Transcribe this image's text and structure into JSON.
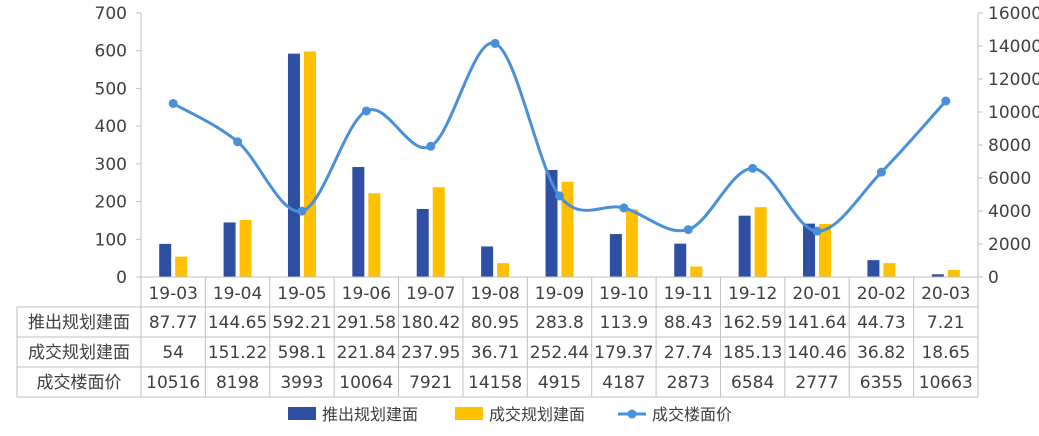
{
  "chart_data": {
    "type": "bar",
    "categories": [
      "19-03",
      "19-04",
      "19-05",
      "19-06",
      "19-07",
      "19-08",
      "19-09",
      "19-10",
      "19-11",
      "19-12",
      "20-01",
      "20-02",
      "20-03"
    ],
    "series": [
      {
        "name": "推出规划建面",
        "type": "bar",
        "axis": "left",
        "color": "#2F4FA3",
        "values": [
          87.77,
          144.65,
          592.21,
          291.58,
          180.42,
          80.95,
          283.8,
          113.9,
          88.43,
          162.59,
          141.64,
          44.73,
          7.21
        ],
        "labels": [
          "87.77",
          "144.65",
          "592.21",
          "291.58",
          "180.42",
          "80.95",
          "283.8",
          "113.9",
          "88.43",
          "162.59",
          "141.64",
          "44.73",
          "7.21"
        ]
      },
      {
        "name": "成交规划建面",
        "type": "bar",
        "axis": "left",
        "color": "#FFC000",
        "values": [
          54,
          151.22,
          598.1,
          221.84,
          237.95,
          36.71,
          252.44,
          179.37,
          27.74,
          185.13,
          140.46,
          36.82,
          18.65
        ],
        "labels": [
          "54",
          "151.22",
          "598.1",
          "221.84",
          "237.95",
          "36.71",
          "252.44",
          "179.37",
          "27.74",
          "185.13",
          "140.46",
          "36.82",
          "18.65"
        ]
      },
      {
        "name": "成交楼面价",
        "type": "line",
        "axis": "right",
        "color": "#4A90D9",
        "values": [
          10516,
          8198,
          3993,
          10064,
          7921,
          14158,
          4915,
          4187,
          2873,
          6584,
          2777,
          6355,
          10663
        ],
        "labels": [
          "10516",
          "8198",
          "3993",
          "10064",
          "7921",
          "14158",
          "4915",
          "4187",
          "2873",
          "6584",
          "2777",
          "6355",
          "10663"
        ]
      }
    ],
    "y_left": {
      "ylim": [
        0,
        700
      ],
      "ticks": [
        "0",
        "100",
        "200",
        "300",
        "400",
        "500",
        "600",
        "700"
      ]
    },
    "y_right": {
      "ylim": [
        0,
        16000
      ],
      "ticks": [
        "0",
        "2000",
        "4000",
        "6000",
        "8000",
        "10000",
        "12000",
        "14000",
        "16000"
      ]
    },
    "grid": false,
    "legend_position": "bottom",
    "data_table": true,
    "title": "",
    "xlabel": "",
    "ylabel": ""
  }
}
